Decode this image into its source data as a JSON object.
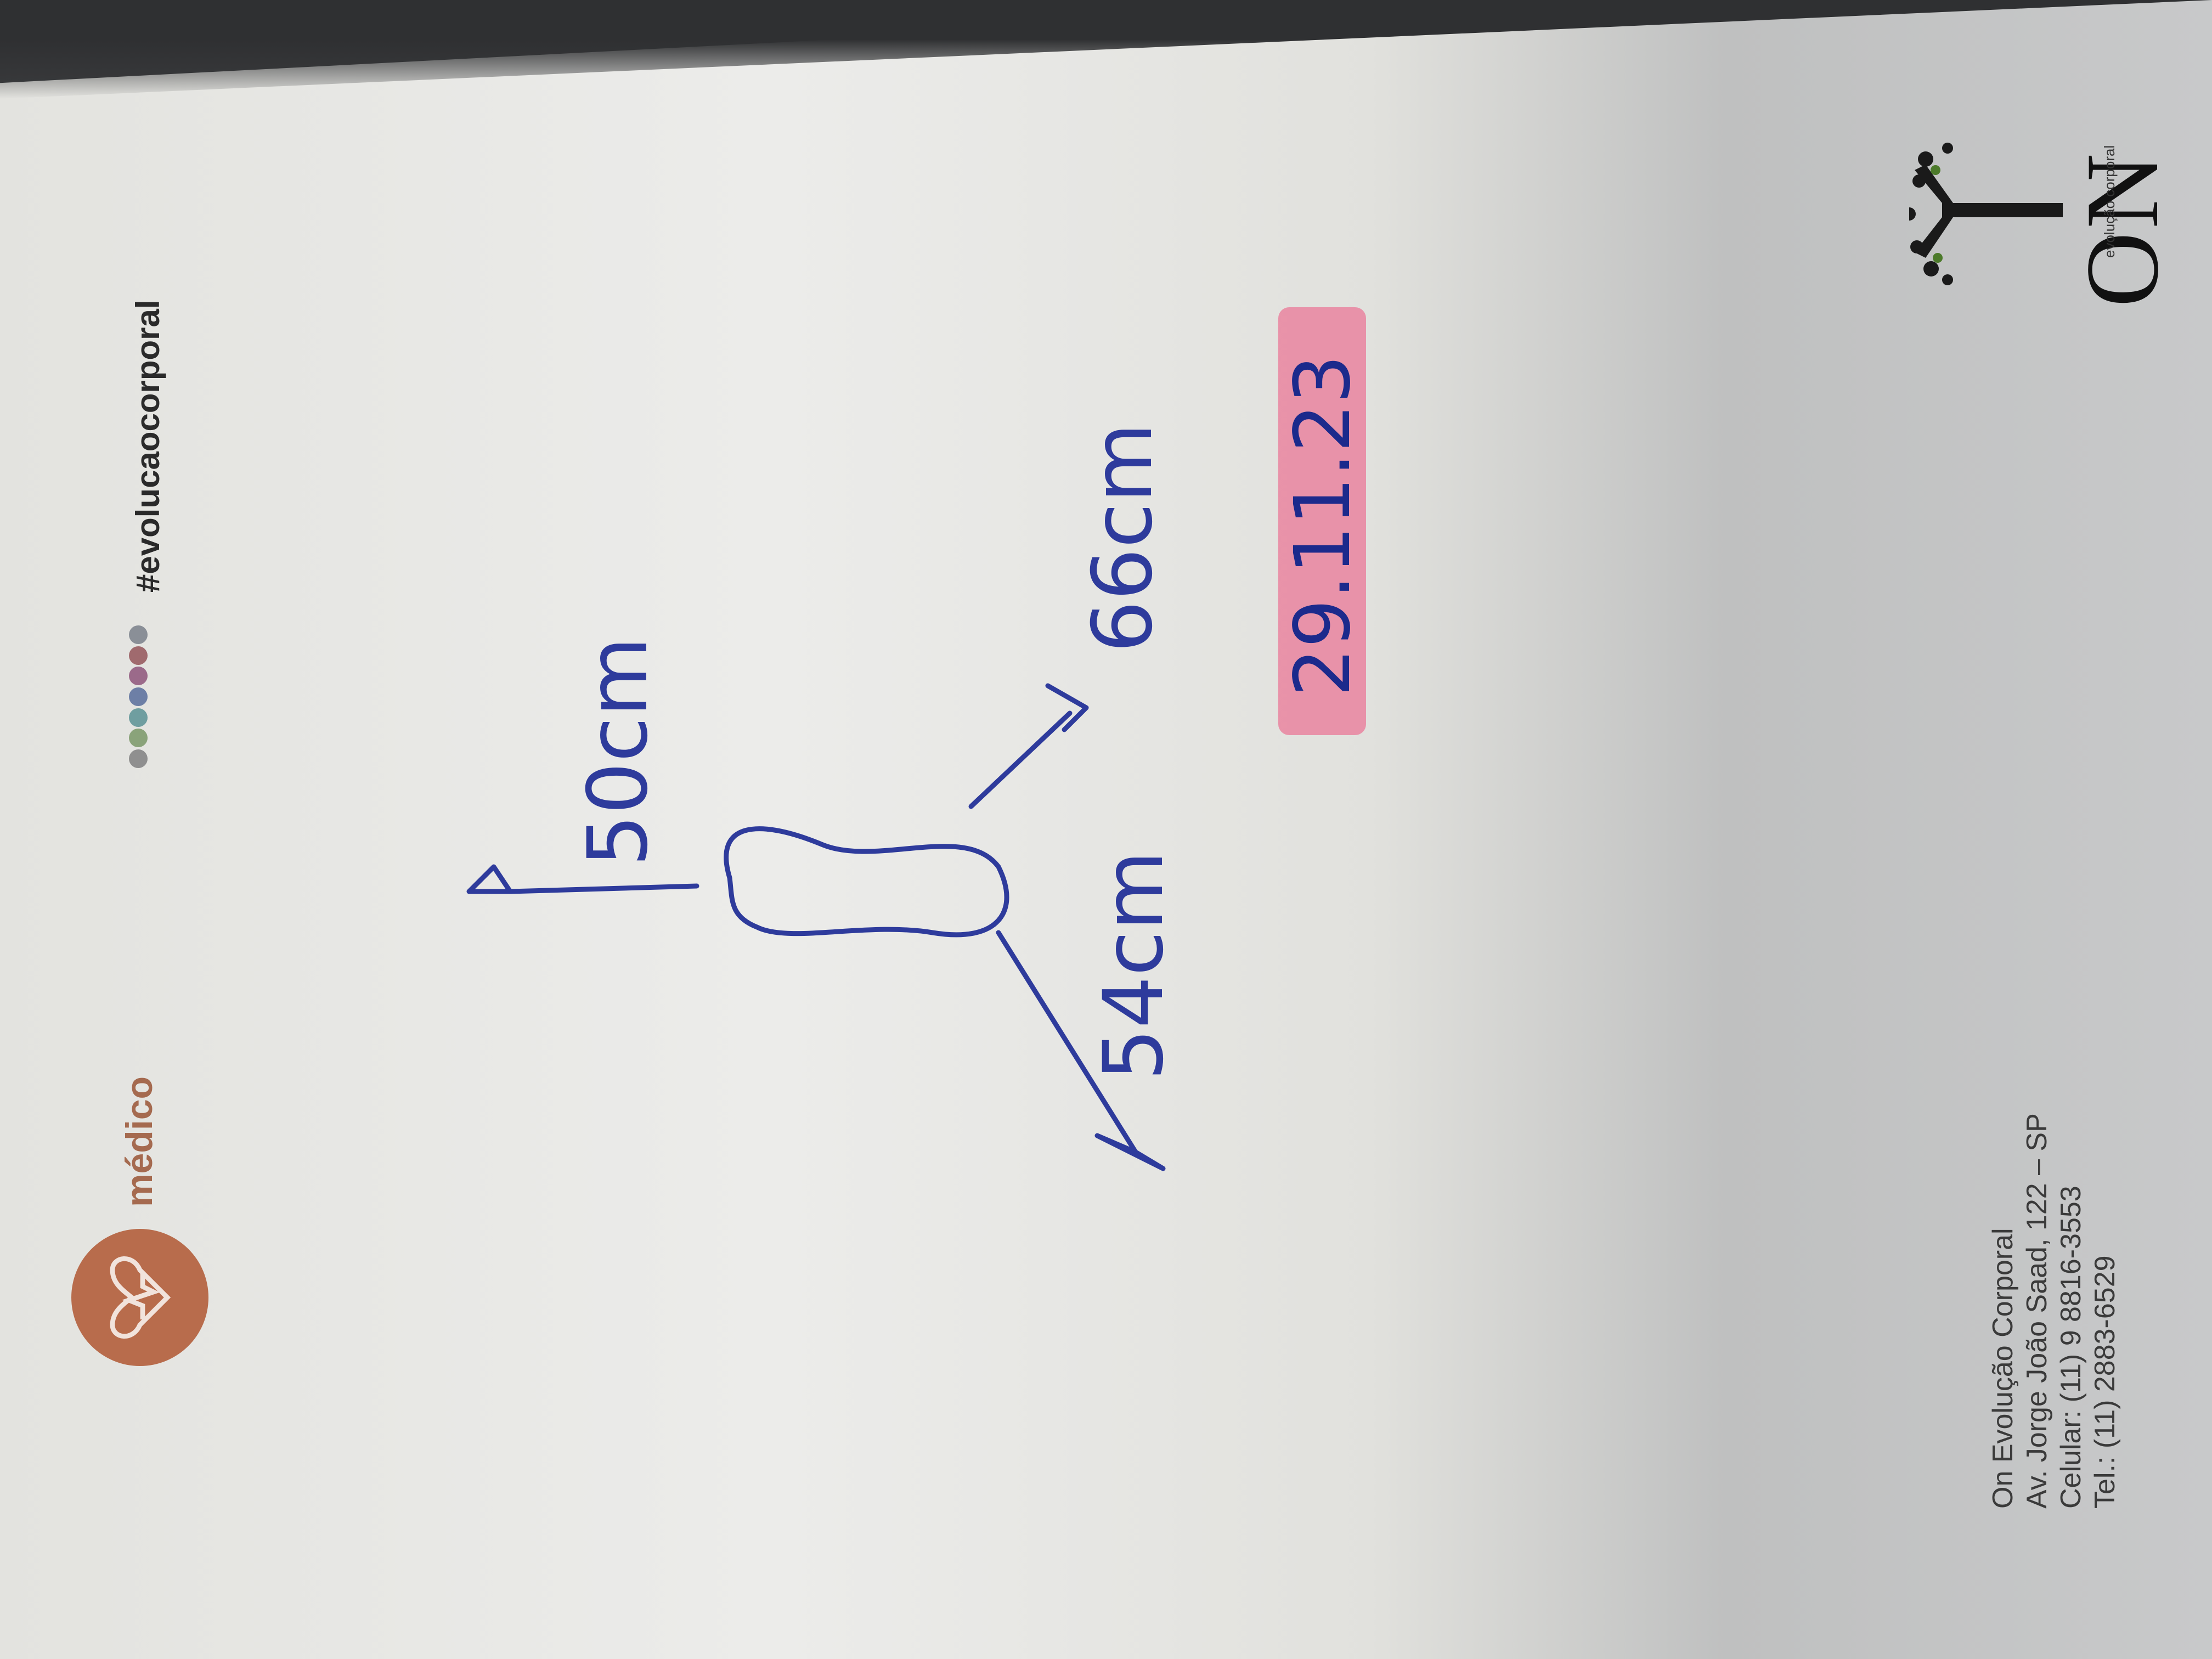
{
  "header": {
    "brand_label": "médico",
    "hashtag": "#evolucaocorporal",
    "dot_colors": [
      "#8a8f97",
      "#a06a6e",
      "#9b6a8a",
      "#6d7fa6",
      "#6f9ea0",
      "#8aa37a",
      "#8f8f8f"
    ],
    "brand_color": "#b86c4c"
  },
  "drawing": {
    "label_up": "50cm",
    "label_down_left": "54cm",
    "label_down_right": "66cm",
    "ink_color": "#2e3b9c"
  },
  "date": {
    "text": "29.11.23",
    "highlight_color": "#e98aa3"
  },
  "footer": {
    "company": "On Evolução Corporal",
    "street": "Av. Jorge João Saad, 122 – SP",
    "mobile": "Celular: (11) 9 8816-3553",
    "phone": "Tel.: (11) 2883-6529"
  },
  "logo": {
    "name": "ON",
    "tagline": "evolução corporal"
  }
}
